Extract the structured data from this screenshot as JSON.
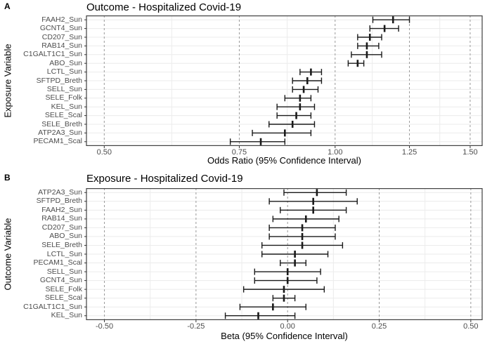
{
  "figure_name": "forest-plots-hospitalized-covid19",
  "colors": {
    "background": "#ffffff",
    "bar": "#1a1a1a",
    "grid_major_dashed": "#999999",
    "grid_minor": "#ececec",
    "grid_row": "#ebebeb",
    "panel_border": "#404040",
    "axis_tick": "#333333",
    "tick_text": "#4d4d4d",
    "title_text": "#000000"
  },
  "chart_data": [
    {
      "type": "forest",
      "panel_letter": "A",
      "title": "Outcome - Hospitalized Covid-19",
      "xlabel": "Odds Ratio (95% Confidence Interval)",
      "ylabel": "Exposure Variable",
      "scale": "log",
      "xlim": [
        0.474,
        1.555
      ],
      "xticks": [
        0.5,
        0.75,
        1.0,
        1.25,
        1.5
      ],
      "xtick_labels": [
        "0.50",
        "0.75",
        "1.00",
        "1.25",
        "1.50"
      ],
      "grid": true,
      "legend": "none",
      "rows": [
        {
          "label": "FAAH2_Sun",
          "est": 1.19,
          "lo": 1.12,
          "hi": 1.25
        },
        {
          "label": "GCNT4_Sun",
          "est": 1.16,
          "lo": 1.11,
          "hi": 1.21
        },
        {
          "label": "CD207_Sun",
          "est": 1.11,
          "lo": 1.07,
          "hi": 1.15
        },
        {
          "label": "RAB14_Sun",
          "est": 1.1,
          "lo": 1.07,
          "hi": 1.14
        },
        {
          "label": "C1GALT1C1_Sun",
          "est": 1.1,
          "lo": 1.05,
          "hi": 1.15
        },
        {
          "label": "ABO_Sun",
          "est": 1.07,
          "lo": 1.04,
          "hi": 1.09
        },
        {
          "label": "LCTL_Sun",
          "est": 0.93,
          "lo": 0.9,
          "hi": 0.96
        },
        {
          "label": "SFTPD_Breth",
          "est": 0.92,
          "lo": 0.88,
          "hi": 0.96
        },
        {
          "label": "SELL_Sun",
          "est": 0.91,
          "lo": 0.88,
          "hi": 0.95
        },
        {
          "label": "SELE_Folk",
          "est": 0.9,
          "lo": 0.86,
          "hi": 0.93
        },
        {
          "label": "KEL_Sun",
          "est": 0.9,
          "lo": 0.84,
          "hi": 0.94
        },
        {
          "label": "SELE_Scal",
          "est": 0.89,
          "lo": 0.84,
          "hi": 0.93
        },
        {
          "label": "SELE_Breth",
          "est": 0.88,
          "lo": 0.82,
          "hi": 0.94
        },
        {
          "label": "ATP2A3_Sun",
          "est": 0.86,
          "lo": 0.78,
          "hi": 0.93
        },
        {
          "label": "PECAM1_Scal",
          "est": 0.8,
          "lo": 0.73,
          "hi": 0.86
        }
      ]
    },
    {
      "type": "forest",
      "panel_letter": "B",
      "title": "Exposure - Hospitalized Covid-19",
      "xlabel": "Beta (95% Confidence Interval)",
      "ylabel": "Outcome Variable",
      "scale": "linear",
      "xlim": [
        -0.549,
        0.531
      ],
      "xticks": [
        -0.5,
        -0.25,
        0.0,
        0.25,
        0.5
      ],
      "xtick_labels": [
        "-0.50",
        "-0.25",
        "0.00",
        "0.25",
        "0.50"
      ],
      "grid": true,
      "legend": "none",
      "rows": [
        {
          "label": "ATP2A3_Sun",
          "est": 0.08,
          "lo": -0.01,
          "hi": 0.16
        },
        {
          "label": "SFTPD_Breth",
          "est": 0.07,
          "lo": -0.05,
          "hi": 0.19
        },
        {
          "label": "FAAH2_Sun",
          "est": 0.07,
          "lo": -0.02,
          "hi": 0.16
        },
        {
          "label": "RAB14_Sun",
          "est": 0.05,
          "lo": -0.04,
          "hi": 0.14
        },
        {
          "label": "CD207_Sun",
          "est": 0.04,
          "lo": -0.05,
          "hi": 0.13
        },
        {
          "label": "ABO_Sun",
          "est": 0.04,
          "lo": -0.05,
          "hi": 0.13
        },
        {
          "label": "SELE_Breth",
          "est": 0.04,
          "lo": -0.07,
          "hi": 0.15
        },
        {
          "label": "LCTL_Sun",
          "est": 0.02,
          "lo": -0.07,
          "hi": 0.11
        },
        {
          "label": "PECAM1_Scal",
          "est": 0.02,
          "lo": -0.02,
          "hi": 0.05
        },
        {
          "label": "SELL_Sun",
          "est": 0.0,
          "lo": -0.09,
          "hi": 0.09
        },
        {
          "label": "GCNT4_Sun",
          "est": 0.0,
          "lo": -0.09,
          "hi": 0.08
        },
        {
          "label": "SELE_Folk",
          "est": -0.01,
          "lo": -0.12,
          "hi": 0.1
        },
        {
          "label": "SELE_Scal",
          "est": -0.01,
          "lo": -0.04,
          "hi": 0.02
        },
        {
          "label": "C1GALT1C1_Sun",
          "est": -0.04,
          "lo": -0.13,
          "hi": 0.05
        },
        {
          "label": "KEL_Sun",
          "est": -0.08,
          "lo": -0.17,
          "hi": 0.02
        }
      ]
    }
  ]
}
